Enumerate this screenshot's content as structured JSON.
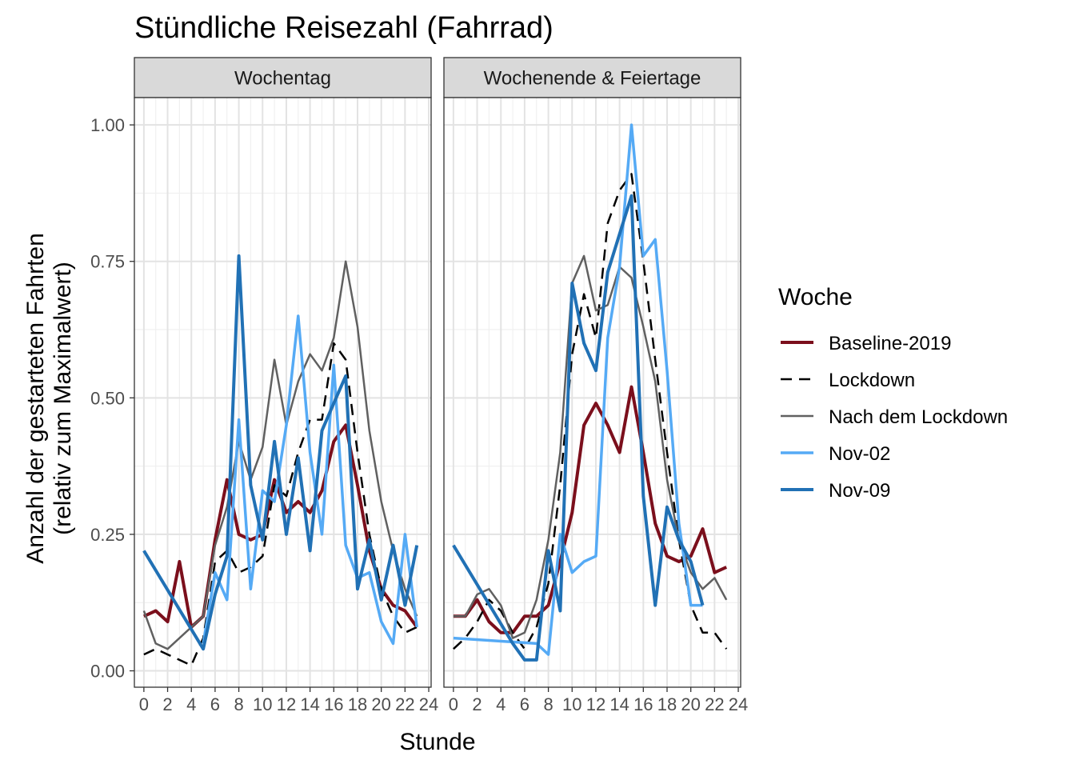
{
  "chart_data": {
    "type": "line",
    "title": "Stündliche Reisezahl (Fahrrad)",
    "xlabel": "Stunde",
    "ylabel_line1": "Anzahl der gestarteten Fahrten",
    "ylabel_line2": "(relativ zum Maximalwert)",
    "xlim": [
      -0.8,
      24.2
    ],
    "ylim": [
      -0.03,
      1.05
    ],
    "x_ticks": [
      0,
      2,
      4,
      6,
      8,
      10,
      12,
      14,
      16,
      18,
      20,
      22,
      24
    ],
    "x_tick_labels": [
      "0",
      "2",
      "4",
      "6",
      "8",
      "10",
      "12",
      "14",
      "16",
      "18",
      "20",
      "22",
      "24"
    ],
    "y_ticks": [
      0,
      0.25,
      0.5,
      0.75,
      1.0
    ],
    "y_tick_labels": [
      "0.00",
      "0.25",
      "0.50",
      "0.75",
      "1.00"
    ],
    "grid": true,
    "legend_title": "Woche",
    "legend_position": "right",
    "series_styles": [
      {
        "name": "Baseline-2019",
        "color": "#7b0f1c",
        "width": 4,
        "dash": ""
      },
      {
        "name": "Lockdown",
        "color": "#000000",
        "width": 2.5,
        "dash": "14,9"
      },
      {
        "name": "Nach dem Lockdown",
        "color": "#606060",
        "width": 2.5,
        "dash": ""
      },
      {
        "name": "Nov-02",
        "color": "#55aaf5",
        "width": 3.5,
        "dash": ""
      },
      {
        "name": "Nov-09",
        "color": "#2171b5",
        "width": 4,
        "dash": ""
      }
    ],
    "panels": [
      {
        "label": "Wochentag",
        "series": [
          {
            "name": "Baseline-2019",
            "x": [
              0,
              1,
              2,
              3,
              4,
              5,
              6,
              7,
              8,
              9,
              10,
              11,
              12,
              13,
              14,
              15,
              16,
              17,
              18,
              19,
              20,
              21,
              22,
              23
            ],
            "y": [
              0.1,
              0.11,
              0.09,
              0.2,
              0.08,
              0.1,
              0.24,
              0.35,
              0.25,
              0.24,
              0.25,
              0.35,
              0.29,
              0.31,
              0.29,
              0.33,
              0.42,
              0.45,
              0.34,
              0.22,
              0.15,
              0.12,
              0.11,
              0.08
            ]
          },
          {
            "name": "Lockdown",
            "x": [
              0,
              1,
              2,
              3,
              4,
              5,
              6,
              7,
              8,
              9,
              10,
              11,
              12,
              13,
              14,
              15,
              16,
              17,
              18,
              19,
              20,
              21,
              22,
              23
            ],
            "y": [
              0.03,
              0.04,
              0.03,
              0.02,
              0.01,
              0.06,
              0.2,
              0.22,
              0.18,
              0.19,
              0.21,
              0.34,
              0.32,
              0.4,
              0.46,
              0.46,
              0.6,
              0.57,
              0.4,
              0.25,
              0.15,
              0.1,
              0.07,
              0.08
            ]
          },
          {
            "name": "Nach dem Lockdown",
            "x": [
              0,
              1,
              2,
              3,
              4,
              5,
              6,
              7,
              8,
              9,
              10,
              11,
              12,
              13,
              14,
              15,
              16,
              17,
              18,
              19,
              20,
              21,
              22,
              23
            ],
            "y": [
              0.11,
              0.05,
              0.04,
              0.06,
              0.08,
              0.1,
              0.23,
              0.3,
              0.42,
              0.35,
              0.41,
              0.57,
              0.45,
              0.53,
              0.58,
              0.55,
              0.61,
              0.75,
              0.63,
              0.44,
              0.31,
              0.22,
              0.15,
              0.1
            ]
          },
          {
            "name": "Nov-02",
            "x": [
              5,
              6,
              7,
              8,
              9,
              10,
              11,
              12,
              13,
              14,
              15,
              16,
              17,
              18,
              19,
              20,
              21,
              22,
              23
            ],
            "y": [
              0.05,
              0.18,
              0.13,
              0.46,
              0.15,
              0.33,
              0.31,
              0.45,
              0.65,
              0.4,
              0.25,
              0.56,
              0.23,
              0.17,
              0.18,
              0.09,
              0.05,
              0.25,
              0.08
            ]
          },
          {
            "name": "Nov-09",
            "x": [
              0,
              5,
              6,
              7,
              8,
              9,
              10,
              11,
              12,
              13,
              14,
              15,
              16,
              17,
              18,
              19,
              20,
              21,
              22,
              23
            ],
            "y": [
              0.22,
              0.04,
              0.14,
              0.21,
              0.76,
              0.34,
              0.24,
              0.42,
              0.25,
              0.39,
              0.22,
              0.44,
              0.49,
              0.54,
              0.15,
              0.24,
              0.13,
              0.23,
              0.12,
              0.23
            ]
          }
        ]
      },
      {
        "label": "Wochenende & Feiertage",
        "series": [
          {
            "name": "Baseline-2019",
            "x": [
              0,
              1,
              2,
              3,
              4,
              5,
              6,
              7,
              8,
              9,
              10,
              11,
              12,
              13,
              14,
              15,
              16,
              17,
              18,
              19,
              20,
              21,
              22,
              23
            ],
            "y": [
              0.1,
              0.1,
              0.13,
              0.09,
              0.07,
              0.07,
              0.1,
              0.1,
              0.12,
              0.2,
              0.29,
              0.45,
              0.49,
              0.45,
              0.4,
              0.52,
              0.4,
              0.27,
              0.21,
              0.2,
              0.21,
              0.26,
              0.18,
              0.19
            ]
          },
          {
            "name": "Lockdown",
            "x": [
              0,
              1,
              2,
              3,
              4,
              5,
              6,
              7,
              8,
              9,
              10,
              11,
              12,
              13,
              14,
              15,
              16,
              17,
              18,
              19,
              20,
              21,
              22,
              23
            ],
            "y": [
              0.04,
              0.06,
              0.09,
              0.13,
              0.11,
              0.07,
              0.04,
              0.08,
              0.16,
              0.34,
              0.58,
              0.69,
              0.61,
              0.82,
              0.88,
              0.91,
              0.75,
              0.57,
              0.4,
              0.24,
              0.12,
              0.07,
              0.07,
              0.04
            ]
          },
          {
            "name": "Nach dem Lockdown",
            "x": [
              0,
              1,
              2,
              3,
              4,
              5,
              6,
              7,
              8,
              9,
              10,
              11,
              12,
              13,
              14,
              15,
              16,
              17,
              18,
              19,
              20,
              21,
              22,
              23
            ],
            "y": [
              0.1,
              0.1,
              0.14,
              0.15,
              0.12,
              0.06,
              0.07,
              0.13,
              0.24,
              0.4,
              0.71,
              0.76,
              0.66,
              0.67,
              0.74,
              0.72,
              0.63,
              0.53,
              0.35,
              0.24,
              0.18,
              0.15,
              0.17,
              0.13
            ]
          },
          {
            "name": "Nov-02",
            "x": [
              0,
              7,
              8,
              9,
              10,
              11,
              12,
              13,
              14,
              15,
              16,
              17,
              18,
              19,
              20,
              21
            ],
            "y": [
              0.06,
              0.05,
              0.03,
              0.25,
              0.18,
              0.2,
              0.21,
              0.61,
              0.74,
              1.0,
              0.76,
              0.79,
              0.55,
              0.27,
              0.12,
              0.12
            ]
          },
          {
            "name": "Nov-09",
            "x": [
              0,
              5,
              6,
              7,
              8,
              9,
              10,
              11,
              12,
              13,
              14,
              15,
              16,
              17,
              18,
              19,
              20,
              21
            ],
            "y": [
              0.23,
              0.05,
              0.02,
              0.02,
              0.22,
              0.11,
              0.71,
              0.6,
              0.55,
              0.73,
              0.8,
              0.87,
              0.32,
              0.12,
              0.3,
              0.24,
              0.2,
              0.12
            ]
          }
        ]
      }
    ]
  }
}
